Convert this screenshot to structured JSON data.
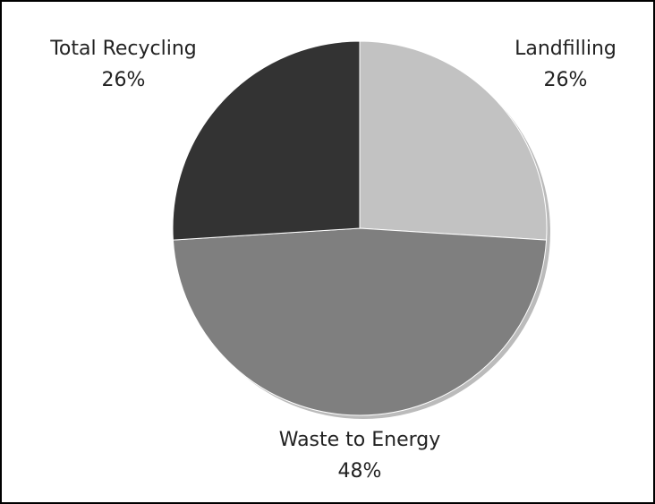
{
  "chart_data": {
    "type": "pie",
    "categories": [
      "Landfilling",
      "Waste to Energy",
      "Total Recycling"
    ],
    "values": [
      26,
      48,
      26
    ],
    "value_labels": [
      "26%",
      "48%",
      "26%"
    ],
    "colors": [
      "#c2c2c2",
      "#7f7f7f",
      "#333333"
    ]
  }
}
